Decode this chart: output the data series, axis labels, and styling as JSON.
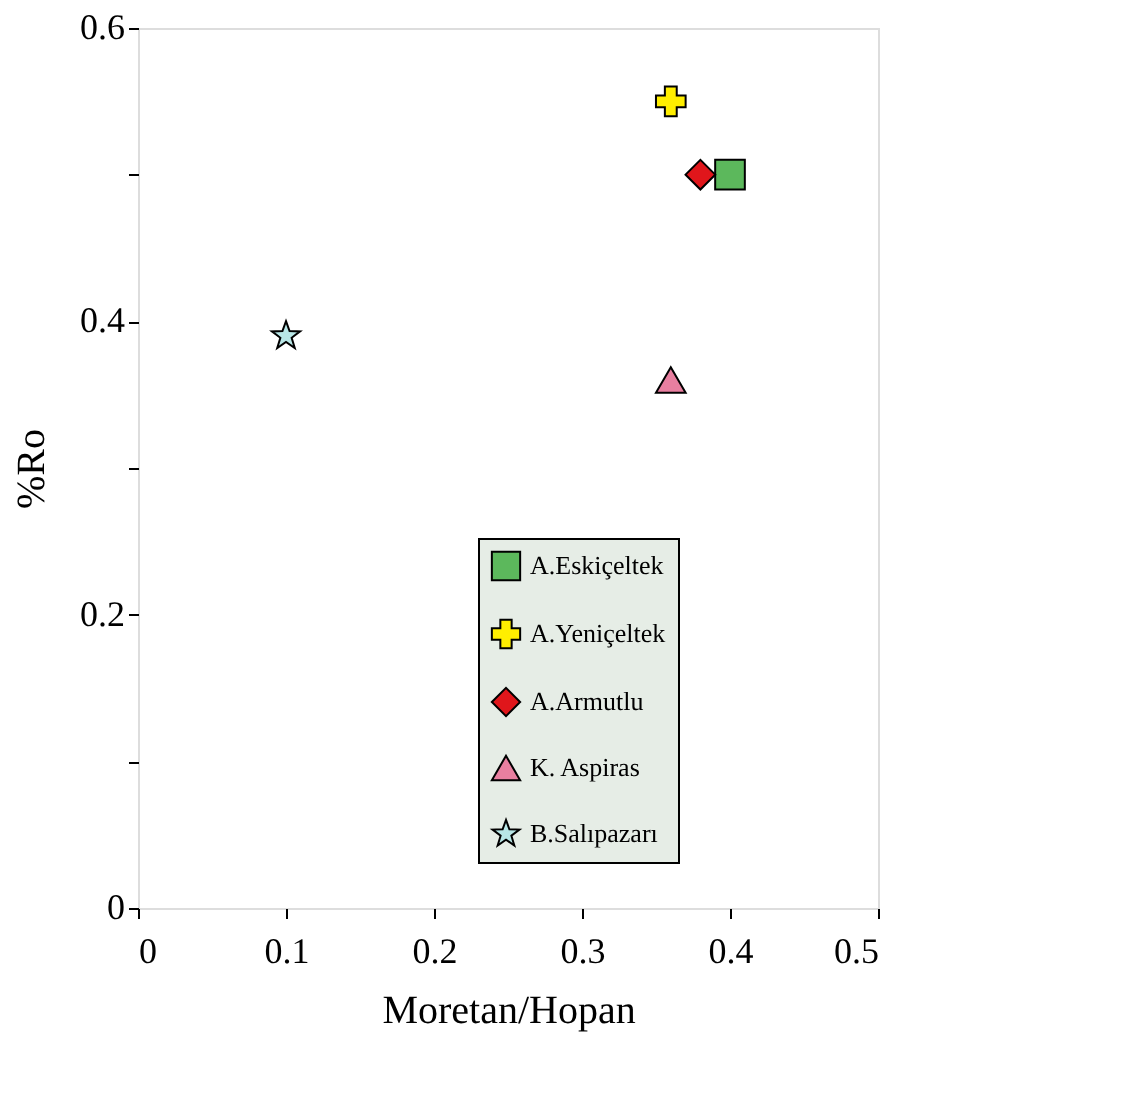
{
  "chart_data": {
    "type": "scatter",
    "xlabel": "Moretan/Hopan",
    "ylabel": "%Ro",
    "xlim": [
      0,
      0.5
    ],
    "xticks": [
      0,
      0.1,
      0.2,
      0.3,
      0.4,
      0.5
    ],
    "ylim": [
      0,
      0.6
    ],
    "yticks": [
      0,
      {
        "value": 0.1,
        "label": null
      },
      0.2,
      {
        "value": 0.3,
        "label": null
      },
      0.4,
      {
        "value": 0.5,
        "label": null
      },
      0.6
    ],
    "grid": false,
    "legend": "bottom",
    "series": [
      {
        "name": "A.Eskiçeltek",
        "color": "#5cb85c",
        "marker": "square",
        "x": [
          0.4
        ],
        "values": [
          0.5
        ]
      },
      {
        "name": "A.Yeniçeltek",
        "color": "#ffee00",
        "marker": "cross",
        "x": [
          0.36
        ],
        "values": [
          0.55
        ]
      },
      {
        "name": "A.Armutlu",
        "color": "#e0161b",
        "marker": "diamond",
        "x": [
          0.38
        ],
        "values": [
          0.5
        ]
      },
      {
        "name": "K. Aspiras",
        "color": "#e87fa0",
        "marker": "triangle",
        "x": [
          0.36
        ],
        "values": [
          0.36
        ]
      },
      {
        "name": "B.Salıpazarı",
        "color": "#b8e6e6",
        "marker": "star",
        "x": [
          0.1
        ],
        "values": [
          0.39
        ]
      }
    ]
  }
}
